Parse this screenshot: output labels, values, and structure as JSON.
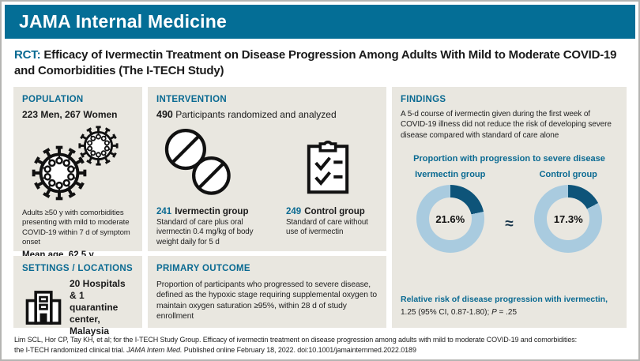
{
  "journal": "JAMA Internal Medicine",
  "title": {
    "tag": "RCT:",
    "text": "Efficacy of Ivermectin Treatment on Disease Progression Among Adults With Mild to Moderate COVID-19 and Comorbidities (The I-TECH Study)"
  },
  "population": {
    "heading": "POPULATION",
    "counts": "223 Men, 267 Women",
    "description": "Adults ≥50 y with comorbidities presenting with mild to moderate COVID-19 within 7 d of symptom onset",
    "mean_age": "Mean age, 62.5 y"
  },
  "intervention": {
    "heading": "INTERVENTION",
    "total": "490",
    "total_label": "Participants randomized and analyzed",
    "groups": [
      {
        "n": "241",
        "name": "Ivermectin group",
        "detail": "Standard of care plus oral ivermectin 0.4 mg/kg of body weight daily for 5 d"
      },
      {
        "n": "249",
        "name": "Control group",
        "detail": "Standard of care without use of ivermectin"
      }
    ]
  },
  "settings": {
    "heading": "SETTINGS / LOCATIONS",
    "text": "20 Hospitals & 1 quarantine center, Malaysia"
  },
  "primary_outcome": {
    "heading": "PRIMARY OUTCOME",
    "text": "Proportion of participants who progressed to severe disease, defined as the hypoxic stage requiring supplemental oxygen to maintain oxygen saturation ≥95%, within 28 d of study enrollment"
  },
  "findings": {
    "heading": "FINDINGS",
    "summary": "A 5-d course of ivermectin given during the first week of COVID-19 illness did not reduce the risk of developing severe disease compared with standard of care alone",
    "approx_symbol": "≈",
    "relative_risk_label": "Relative risk of disease progression with ivermectin,",
    "relative_risk_value": "1.25 (95% CI, 0.87-1.80); ",
    "p_label": "P",
    "p_value": " = .25"
  },
  "chart_data": {
    "type": "pie",
    "subtype": "paired-donuts",
    "title": "Proportion with progression to severe disease",
    "series": [
      {
        "name": "Ivermectin group",
        "value_pct": 21.6,
        "label": "21.6%"
      },
      {
        "name": "Control group",
        "value_pct": 17.3,
        "label": "17.3%"
      }
    ],
    "legend_position": "none",
    "colors": {
      "progressed": "#0e5479",
      "remainder": "#a9cbdf"
    }
  },
  "footer": {
    "line1": "Lim SCL, Hor CP, Tay KH, et al; for the I-TECH Study Group. Efficacy of ivermectin treatment on disease progression among adults with mild to moderate COVID-19 and comorbidities:",
    "line2_pre": "the I-TECH randomized clinical trial. ",
    "line2_italic": "JAMA Intern Med.",
    "line2_post": " Published online February 18, 2022. doi:10.1001/jamainternmed.2022.0189"
  },
  "brand_colors": {
    "masthead": "#046e96",
    "heading_teal": "#0a6a92",
    "box_background": "#e9e7e0"
  }
}
